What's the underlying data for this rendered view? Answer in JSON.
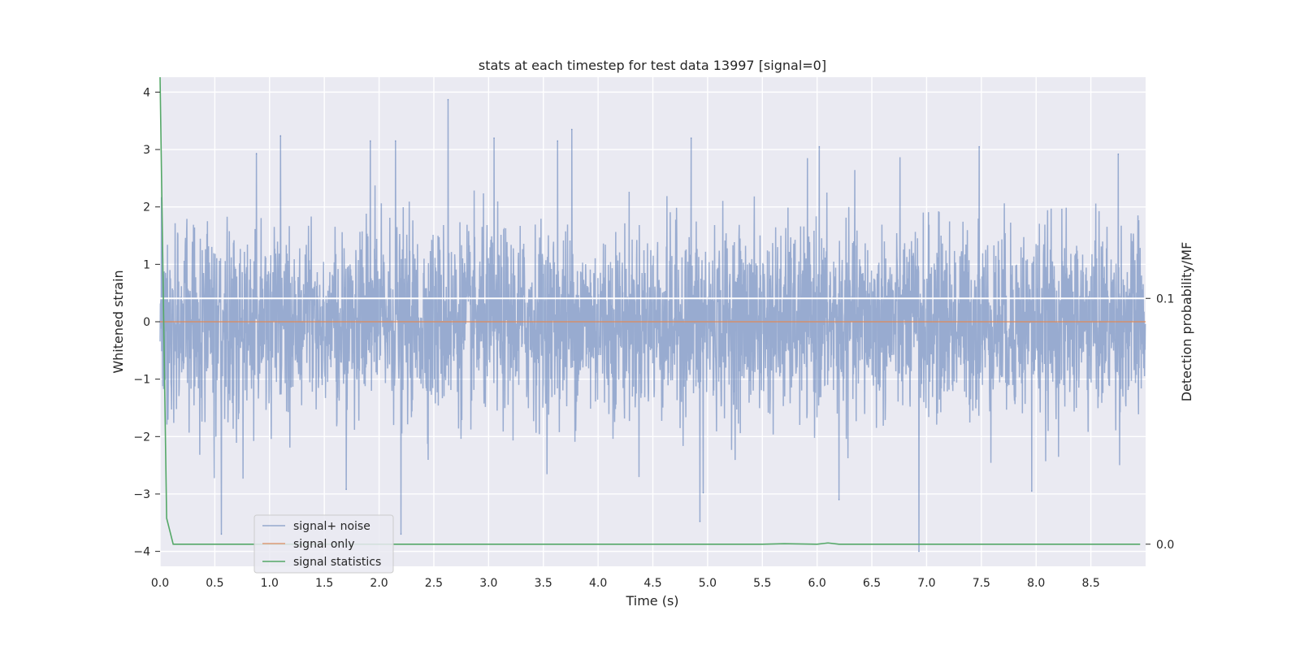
{
  "chart_data": {
    "type": "line",
    "title": "stats at each timestep for test data 13997 [signal=0]",
    "xlabel": "Time (s)",
    "ylabel": "Whitened strain",
    "y2label": "Detection probability/MF",
    "xlim": [
      0,
      9
    ],
    "ylim": [
      -4.26,
      4.26
    ],
    "y2lim": [
      -0.009,
      0.19
    ],
    "xticks": [
      "0.0",
      "0.5",
      "1.0",
      "1.5",
      "2.0",
      "2.5",
      "3.0",
      "3.5",
      "4.0",
      "4.5",
      "5.0",
      "5.5",
      "6.0",
      "6.5",
      "7.0",
      "7.5",
      "8.0",
      "8.5"
    ],
    "yticks": [
      "4",
      "3",
      "2",
      "1",
      "0",
      "−1",
      "−2",
      "−3",
      "−4"
    ],
    "y2ticks": [
      "0.1",
      "0.0"
    ],
    "grid": true,
    "legend_position": "lower-left",
    "colors": {
      "background": "#eaeaf2",
      "noise": "#4c72b0",
      "signal_only": "#dd8452",
      "statistics": "#55a868",
      "y2_guide": "#ffffff"
    },
    "series": [
      {
        "name": "signal+ noise",
        "kind": "noise",
        "description_stats": {
          "mean": 0,
          "std": 0.8,
          "min": -4.0,
          "max": 3.87
        },
        "notable_peaks": [
          {
            "t": 2.63,
            "v": 3.87
          },
          {
            "t": 1.1,
            "v": 3.24
          },
          {
            "t": 3.76,
            "v": 3.35
          },
          {
            "t": 4.85,
            "v": 3.2
          },
          {
            "t": 0.88,
            "v": 2.93
          },
          {
            "t": 1.92,
            "v": 3.15
          },
          {
            "t": 2.15,
            "v": 3.15
          },
          {
            "t": 3.05,
            "v": 3.2
          },
          {
            "t": 3.63,
            "v": 3.15
          },
          {
            "t": 6.02,
            "v": 3.05
          },
          {
            "t": 7.48,
            "v": 3.05
          },
          {
            "t": 8.75,
            "v": 2.92
          },
          {
            "t": 0.56,
            "v": -3.7
          },
          {
            "t": 2.2,
            "v": -3.7
          },
          {
            "t": 4.93,
            "v": -3.48
          },
          {
            "t": 6.93,
            "v": -4.0
          },
          {
            "t": 1.7,
            "v": -2.92
          },
          {
            "t": 4.96,
            "v": -2.98
          },
          {
            "t": 6.2,
            "v": -3.1
          },
          {
            "t": 7.96,
            "v": -2.95
          }
        ]
      },
      {
        "name": "signal only",
        "kind": "flat",
        "x": [
          0,
          9
        ],
        "y": [
          0,
          0
        ]
      },
      {
        "name": "signal statistics",
        "kind": "secondary",
        "x": [
          0,
          0.06,
          0.12,
          5.5,
          5.7,
          6.0,
          6.1,
          6.2,
          8.95
        ],
        "y": [
          0.19,
          0.0106,
          0.0,
          0.0,
          0.0002,
          0.0,
          0.0005,
          0.0,
          0.0
        ]
      }
    ],
    "y2_guide_value": 0.1
  }
}
